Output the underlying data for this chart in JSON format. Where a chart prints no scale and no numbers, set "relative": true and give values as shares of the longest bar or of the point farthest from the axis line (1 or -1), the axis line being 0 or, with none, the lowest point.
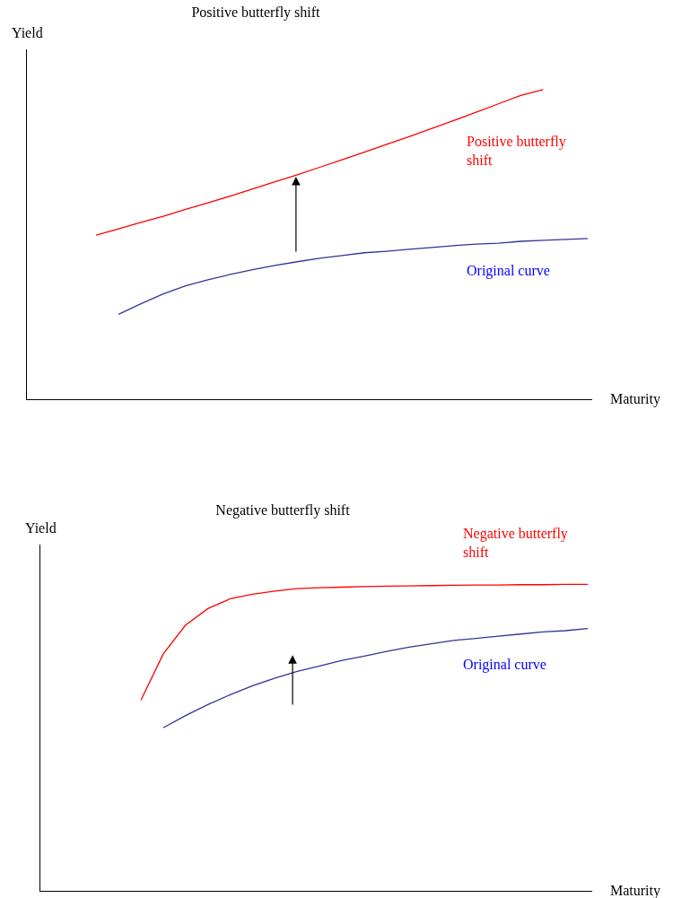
{
  "chart_data": [
    {
      "type": "line",
      "title": "Positive butterfly shift",
      "xlabel": "Maturity",
      "ylabel": "Yield",
      "relative": true,
      "legend": false,
      "grid": false,
      "marker": "none",
      "categories": [
        null,
        null,
        null,
        null,
        null,
        null,
        null,
        null,
        null,
        null,
        null,
        null,
        null,
        null,
        null,
        null,
        null,
        null,
        null,
        null,
        null,
        null,
        null
      ],
      "series": [
        {
          "name": "Positive butterfly shift",
          "color": "#ff0000",
          "values": [
            0.53,
            0.55,
            0.571,
            0.591,
            0.613,
            0.634,
            0.656,
            0.679,
            0.702,
            0.725,
            0.749,
            0.773,
            0.798,
            0.823,
            0.848,
            0.874,
            0.9,
            0.927,
            0.954,
            0.981,
            1.0,
            null,
            null
          ]
        },
        {
          "name": "Original curve",
          "color": "#333399",
          "values": [
            null,
            0.274,
            0.308,
            0.34,
            0.366,
            0.386,
            0.403,
            0.418,
            0.432,
            0.444,
            0.455,
            0.464,
            0.473,
            0.478,
            0.484,
            0.49,
            0.496,
            0.501,
            0.504,
            0.51,
            0.513,
            0.516,
            0.519
          ]
        }
      ]
    },
    {
      "type": "line",
      "title": "Negative butterfly shift",
      "xlabel": "Maturity",
      "ylabel": "Yield",
      "relative": true,
      "legend": false,
      "grid": false,
      "marker": "none",
      "categories": [
        null,
        null,
        null,
        null,
        null,
        null,
        null,
        null,
        null,
        null,
        null,
        null,
        null,
        null,
        null,
        null,
        null,
        null,
        null,
        null,
        null
      ],
      "series": [
        {
          "name": "Negative butterfly shift",
          "color": "#ff0000",
          "values": [
            0.622,
            0.773,
            0.867,
            0.921,
            0.953,
            0.968,
            0.978,
            0.986,
            0.989,
            0.991,
            0.993,
            0.994,
            0.995,
            0.996,
            0.997,
            0.998,
            0.998,
            0.999,
            0.999,
            1.0,
            1.0
          ]
        },
        {
          "name": "Original curve",
          "color": "#333399",
          "values": [
            null,
            0.532,
            0.572,
            0.608,
            0.64,
            0.669,
            0.694,
            0.716,
            0.734,
            0.752,
            0.766,
            0.781,
            0.795,
            0.806,
            0.817,
            0.824,
            0.831,
            0.838,
            0.845,
            0.849,
            0.856
          ]
        }
      ]
    }
  ]
}
